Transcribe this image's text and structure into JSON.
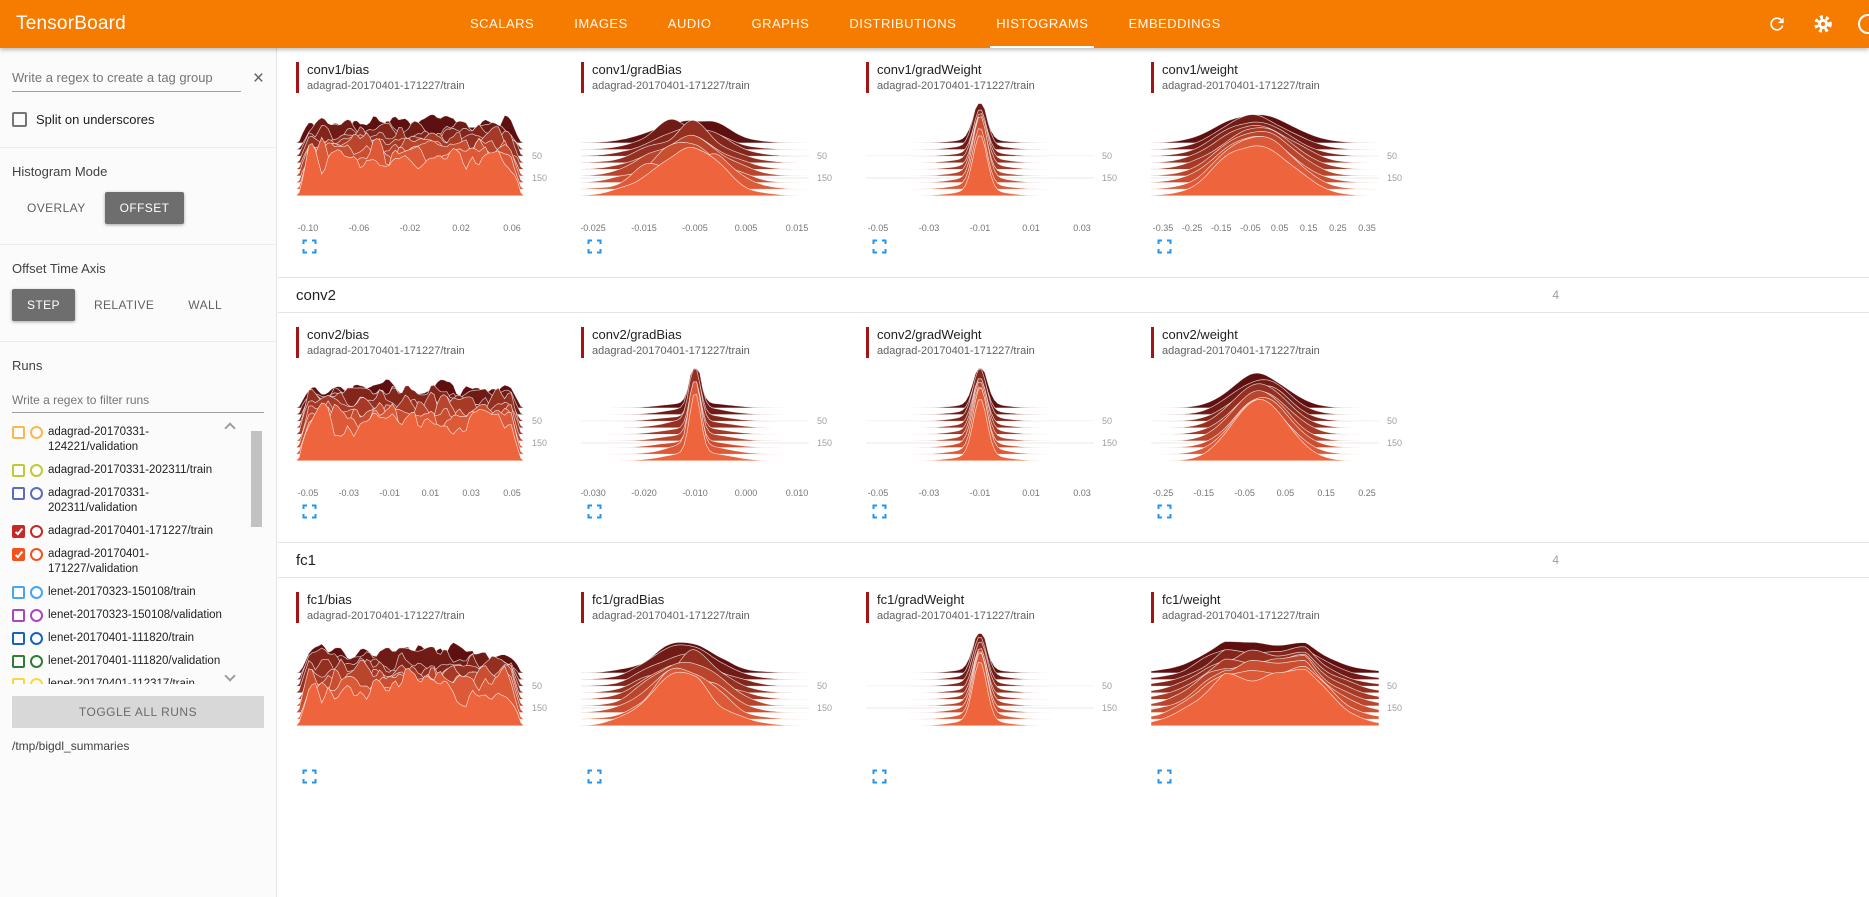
{
  "header": {
    "title": "TensorBoard",
    "tabs": [
      {
        "label": "SCALARS",
        "active": false
      },
      {
        "label": "IMAGES",
        "active": false
      },
      {
        "label": "AUDIO",
        "active": false
      },
      {
        "label": "GRAPHS",
        "active": false
      },
      {
        "label": "DISTRIBUTIONS",
        "active": false
      },
      {
        "label": "HISTOGRAMS",
        "active": true
      },
      {
        "label": "EMBEDDINGS",
        "active": false
      }
    ],
    "icons": [
      {
        "name": "refresh-icon"
      },
      {
        "name": "settings-icon"
      },
      {
        "name": "help-icon"
      }
    ]
  },
  "colors": {
    "accent": "#f57c00",
    "ridge_dark": "#5e1010",
    "ridge_light": "#ee643c",
    "grid": "#e8e8e8",
    "tick_label": "#757575",
    "axis_label": "#9e9e9e",
    "expand": "#2196f3",
    "title_bar": "#a31515"
  },
  "sidebar": {
    "tag_regex_placeholder": "Write a regex to create a tag group",
    "split_label": "Split on underscores",
    "histogram_mode": {
      "label": "Histogram Mode",
      "options": [
        "OVERLAY",
        "OFFSET"
      ],
      "selected": "OFFSET"
    },
    "offset_time_axis": {
      "label": "Offset Time Axis",
      "options": [
        "STEP",
        "RELATIVE",
        "WALL"
      ],
      "selected": "STEP"
    },
    "runs_label": "Runs",
    "runs_filter_placeholder": "Write a regex to filter runs",
    "runs": [
      {
        "label": "adagrad-20170331-124221/validation",
        "color": "#ffb74d",
        "checked": false
      },
      {
        "label": "adagrad-20170331-202311/train",
        "color": "#c0ca33",
        "checked": false
      },
      {
        "label": "adagrad-20170331-202311/validation",
        "color": "#5c6bc0",
        "checked": false
      },
      {
        "label": "adagrad-20170401-171227/train",
        "color": "#c62828",
        "checked": true
      },
      {
        "label": "adagrad-20170401-171227/validation",
        "color": "#f4511e",
        "checked": true
      },
      {
        "label": "lenet-20170323-150108/train",
        "color": "#42a5f5",
        "checked": false
      },
      {
        "label": "lenet-20170323-150108/validation",
        "color": "#ab47bc",
        "checked": false
      },
      {
        "label": "lenet-20170401-111820/train",
        "color": "#1565c0",
        "checked": false
      },
      {
        "label": "lenet-20170401-111820/validation",
        "color": "#2e7d32",
        "checked": false
      },
      {
        "label": "lenet-20170401-112317/train",
        "color": "#fdd835",
        "checked": false
      }
    ],
    "toggle_all_label": "TOGGLE ALL RUNS",
    "log_dir": "/tmp/bigdl_summaries"
  },
  "sections": [
    {
      "name": "conv1",
      "count": "",
      "header_visible": false,
      "cards": [
        {
          "title": "conv1/bias",
          "run": "adagrad-20170401-171227/train",
          "shape": "noisy",
          "xticks": [
            "-0.10",
            "-0.06",
            "-0.02",
            "0.02",
            "0.06"
          ],
          "yticks": [
            "50",
            "150"
          ]
        },
        {
          "title": "conv1/gradBias",
          "run": "adagrad-20170401-171227/train",
          "shape": "bumpy",
          "xticks": [
            "-0.025",
            "-0.015",
            "-0.005",
            "0.005",
            "0.015"
          ],
          "yticks": [
            "50",
            "150"
          ]
        },
        {
          "title": "conv1/gradWeight",
          "run": "adagrad-20170401-171227/train",
          "shape": "spike",
          "xticks": [
            "-0.05",
            "-0.03",
            "-0.01",
            "0.01",
            "0.03"
          ],
          "yticks": [
            "50",
            "150"
          ]
        },
        {
          "title": "conv1/weight",
          "run": "adagrad-20170401-171227/train",
          "shape": "bell",
          "xticks": [
            "-0.35",
            "-0.25",
            "-0.15",
            "-0.05",
            "0.05",
            "0.15",
            "0.25",
            "0.35"
          ],
          "yticks": [
            "50",
            "150"
          ]
        }
      ]
    },
    {
      "name": "conv2",
      "count": "4",
      "header_visible": true,
      "cards": [
        {
          "title": "conv2/bias",
          "run": "adagrad-20170401-171227/train",
          "shape": "noisy",
          "xticks": [
            "-0.05",
            "-0.03",
            "-0.01",
            "0.01",
            "0.03",
            "0.05"
          ],
          "yticks": [
            "50",
            "150"
          ]
        },
        {
          "title": "conv2/gradBias",
          "run": "adagrad-20170401-171227/train",
          "shape": "spike-narrow",
          "xticks": [
            "-0.030",
            "-0.020",
            "-0.010",
            "0.000",
            "0.010"
          ],
          "yticks": [
            "50",
            "150"
          ]
        },
        {
          "title": "conv2/gradWeight",
          "run": "adagrad-20170401-171227/train",
          "shape": "spike",
          "xticks": [
            "-0.05",
            "-0.03",
            "-0.01",
            "0.01",
            "0.03"
          ],
          "yticks": [
            "50",
            "150"
          ]
        },
        {
          "title": "conv2/weight",
          "run": "adagrad-20170401-171227/train",
          "shape": "bell-narrow",
          "xticks": [
            "-0.25",
            "-0.15",
            "-0.05",
            "0.05",
            "0.15",
            "0.25"
          ],
          "yticks": [
            "50",
            "150"
          ]
        }
      ]
    },
    {
      "name": "fc1",
      "count": "4",
      "header_visible": true,
      "cards": [
        {
          "title": "fc1/bias",
          "run": "adagrad-20170401-171227/train",
          "shape": "noisy",
          "xticks": [],
          "yticks": [
            "50",
            "150"
          ]
        },
        {
          "title": "fc1/gradBias",
          "run": "adagrad-20170401-171227/train",
          "shape": "bumpy",
          "xticks": [],
          "yticks": [
            "50",
            "150"
          ]
        },
        {
          "title": "fc1/gradWeight",
          "run": "adagrad-20170401-171227/train",
          "shape": "spike",
          "xticks": [],
          "yticks": [
            "50",
            "150"
          ]
        },
        {
          "title": "fc1/weight",
          "run": "adagrad-20170401-171227/train",
          "shape": "flat-bell",
          "xticks": [],
          "yticks": [
            "50",
            "150"
          ]
        }
      ]
    }
  ]
}
